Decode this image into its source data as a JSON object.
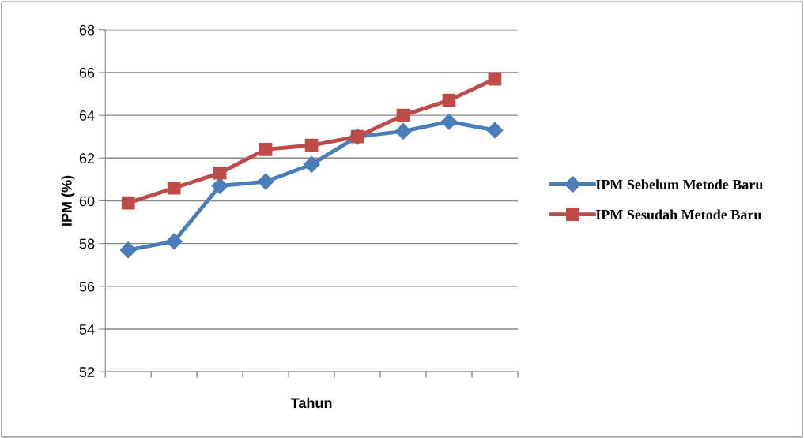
{
  "chart_data": {
    "type": "line",
    "xlabel": "Tahun",
    "ylabel": "IPM (%)",
    "categories": [
      null,
      null,
      null,
      null,
      null,
      null,
      null,
      null,
      null
    ],
    "ylim": [
      52,
      68
    ],
    "yticks": [
      52,
      54,
      56,
      58,
      60,
      62,
      64,
      66,
      68
    ],
    "grid": "y",
    "legend": "right",
    "series": [
      {
        "name": "IPM Sebelum Metode Baru",
        "color": "#4a7ebb",
        "marker": "diamond",
        "values": [
          57.7,
          58.1,
          60.7,
          60.9,
          61.7,
          63.0,
          63.25,
          63.7,
          63.3
        ]
      },
      {
        "name": "IPM Sesudah Metode Baru",
        "color": "#be4b48",
        "marker": "square",
        "values": [
          59.9,
          60.6,
          61.3,
          62.4,
          62.6,
          63.0,
          64.0,
          64.7,
          65.7
        ]
      }
    ]
  }
}
